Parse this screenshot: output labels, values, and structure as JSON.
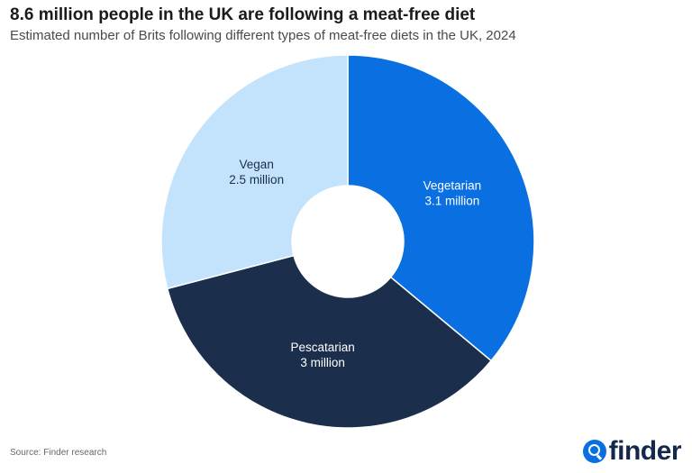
{
  "header": {
    "title": "8.6 million people in the UK are following a meat-free diet",
    "subtitle": "Estimated number of Brits following different types of meat-free diets in the UK, 2024"
  },
  "footer": {
    "source": "Source: Finder research",
    "brand": "finder",
    "brand_icon": "search-icon"
  },
  "chart_data": {
    "type": "pie",
    "donut": true,
    "title": "8.6 million people in the UK are following a meat-free diet",
    "subtitle": "Estimated number of Brits following different types of meat-free diets in the UK, 2024",
    "slices": [
      {
        "name": "Vegetarian",
        "value": 3.1,
        "value_label": "3.1 million",
        "color": "#0a6fe0",
        "text_color": "#ffffff"
      },
      {
        "name": "Pescatarian",
        "value": 3.0,
        "value_label": "3 million",
        "color": "#1b2e4b",
        "text_color": "#ffffff"
      },
      {
        "name": "Vegan",
        "value": 2.5,
        "value_label": "2.5 million",
        "color": "#c2e3fb",
        "text_color": "#1b2e4b"
      }
    ],
    "unit": "million"
  }
}
